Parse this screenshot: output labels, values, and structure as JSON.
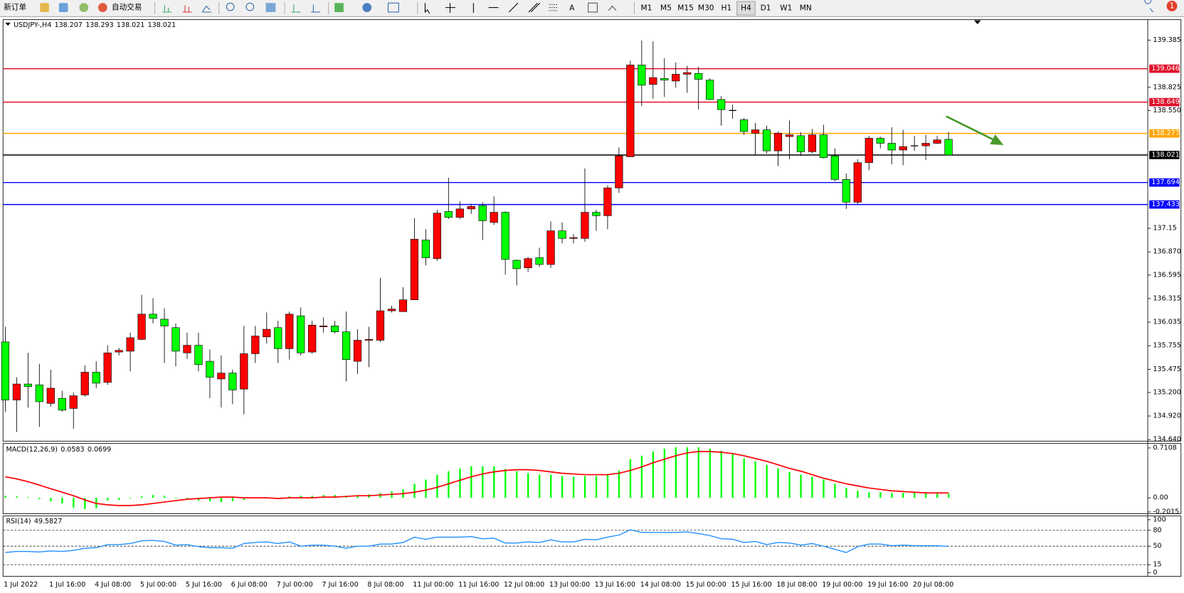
{
  "toolbar": {
    "new_order": "新订单",
    "auto_trading": "自动交易",
    "timeframes": [
      "M1",
      "M5",
      "M15",
      "M30",
      "H1",
      "H4",
      "D1",
      "W1",
      "MN"
    ],
    "notifications": 1
  },
  "chart_data": [
    {
      "type": "candlestick",
      "title": "USDJPY-,H4",
      "categories": [
        "1 Jul 2022",
        null,
        null,
        null,
        "1 Jul 16:00",
        null,
        null,
        null,
        "4 Jul 08:00",
        null,
        null,
        null,
        "5 Jul 00:00",
        null,
        null,
        null,
        "5 Jul 16:00",
        null,
        null,
        null,
        "6 Jul 08:00",
        null,
        null,
        null,
        "7 Jul 00:00",
        null,
        null,
        null,
        "7 Jul 16:00",
        null,
        null,
        null,
        "8 Jul 08:00",
        null,
        null,
        null,
        "11 Jul 00:00",
        null,
        null,
        null,
        "11 Jul 16:00",
        null,
        null,
        null,
        "12 Jul 08:00",
        null,
        null,
        null,
        "13 Jul 00:00",
        null,
        null,
        null,
        "13 Jul 16:00",
        null,
        null,
        null,
        "14 Jul 08:00",
        null,
        null,
        null,
        "15 Jul 00:00",
        null,
        null,
        null,
        "15 Jul 16:00",
        null,
        null,
        null,
        "18 Jul 08:00",
        null,
        null,
        null,
        "19 Jul 00:00",
        null,
        null,
        null,
        "19 Jul 16:00",
        null,
        null,
        null,
        "20 Jul 08:00",
        null,
        null,
        null
      ],
      "open": [
        135.8,
        135.11,
        135.3,
        135.29,
        135.07,
        135.13,
        135.01,
        135.17,
        135.44,
        135.32,
        135.68,
        135.69,
        135.83,
        136.13,
        136.07,
        135.97,
        135.67,
        135.76,
        135.57,
        135.36,
        135.43,
        135.24,
        135.66,
        135.86,
        135.97,
        135.72,
        136.11,
        135.68,
        135.98,
        135.99,
        135.92,
        135.57,
        135.82,
        135.82,
        136.17,
        136.16,
        136.3,
        137.01,
        136.79,
        137.35,
        137.28,
        137.38,
        137.42,
        137.22,
        137.34,
        136.77,
        136.68,
        136.8,
        136.72,
        137.12,
        137.03,
        137.03,
        137.34,
        137.3,
        137.63,
        138.0,
        139.09,
        138.86,
        138.93,
        138.9,
        138.98,
        138.99,
        138.91,
        138.68,
        138.55,
        138.44,
        138.28,
        138.32,
        138.07,
        138.24,
        138.25,
        138.06,
        138.26,
        138.01,
        137.73,
        137.46,
        137.93,
        138.22,
        138.16,
        138.08,
        138.13,
        138.13,
        138.16,
        138.207
      ],
      "high": [
        135.98,
        135.38,
        135.67,
        135.54,
        135.47,
        135.22,
        135.2,
        135.52,
        135.57,
        135.76,
        135.73,
        135.91,
        136.36,
        136.32,
        136.2,
        136.02,
        135.91,
        135.91,
        135.71,
        135.64,
        135.47,
        135.99,
        135.99,
        136.15,
        136.05,
        136.16,
        136.21,
        136.05,
        136.09,
        136.05,
        136.16,
        135.95,
        135.98,
        136.56,
        136.23,
        136.45,
        137.27,
        137.14,
        137.37,
        137.75,
        137.47,
        137.44,
        137.46,
        137.53,
        137.35,
        136.78,
        136.81,
        136.92,
        137.23,
        137.22,
        137.08,
        137.86,
        137.37,
        137.66,
        138.11,
        139.14,
        139.38,
        139.37,
        139.17,
        139.12,
        139.08,
        139.07,
        138.93,
        138.72,
        138.62,
        138.46,
        138.4,
        138.37,
        138.3,
        138.43,
        138.29,
        138.33,
        138.38,
        138.1,
        137.8,
        137.97,
        138.25,
        138.24,
        138.35,
        138.32,
        138.25,
        138.26,
        138.25,
        138.293
      ],
      "low": [
        134.97,
        134.73,
        135.02,
        134.79,
        135.03,
        134.97,
        134.77,
        135.15,
        135.25,
        135.29,
        135.64,
        135.45,
        135.82,
        136.02,
        135.55,
        135.51,
        135.6,
        135.45,
        135.13,
        135.02,
        135.06,
        134.94,
        135.55,
        135.78,
        135.55,
        135.59,
        135.64,
        135.66,
        135.91,
        135.9,
        135.33,
        135.42,
        135.5,
        135.8,
        136.15,
        136.16,
        136.3,
        136.71,
        136.76,
        137.26,
        137.26,
        137.32,
        137.01,
        137.19,
        136.6,
        136.47,
        136.63,
        136.69,
        136.68,
        136.97,
        136.97,
        136.99,
        137.12,
        137.14,
        137.57,
        138.0,
        138.6,
        138.69,
        138.71,
        138.82,
        138.76,
        138.56,
        138.67,
        138.37,
        138.45,
        138.26,
        138.02,
        138.04,
        137.89,
        137.97,
        138.01,
        138.04,
        137.98,
        137.71,
        137.38,
        137.44,
        137.84,
        138.1,
        137.91,
        137.9,
        138.07,
        137.96,
        138.15,
        138.021
      ],
      "close": [
        135.11,
        135.3,
        135.27,
        135.09,
        135.25,
        134.99,
        135.16,
        135.44,
        135.31,
        135.67,
        135.7,
        135.85,
        136.13,
        136.08,
        135.99,
        135.69,
        135.76,
        135.53,
        135.38,
        135.43,
        135.23,
        135.66,
        135.87,
        135.95,
        135.72,
        136.13,
        135.67,
        136.0,
        135.99,
        135.92,
        135.59,
        135.82,
        135.83,
        136.17,
        136.19,
        136.3,
        137.02,
        136.8,
        137.33,
        137.28,
        137.38,
        137.41,
        137.24,
        137.34,
        136.78,
        136.67,
        136.79,
        136.72,
        137.12,
        137.03,
        137.04,
        137.34,
        137.3,
        137.63,
        138.01,
        139.09,
        138.85,
        138.94,
        138.91,
        138.98,
        139.0,
        138.92,
        138.68,
        138.56,
        138.55,
        138.3,
        138.32,
        138.07,
        138.28,
        138.26,
        138.06,
        138.26,
        137.99,
        137.73,
        137.46,
        137.93,
        138.22,
        138.16,
        138.08,
        138.12,
        138.13,
        138.16,
        138.2,
        138.021
      ],
      "up_color": "#ff0000",
      "down_color": "#00ff00",
      "ylim": [
        134.63,
        139.62
      ],
      "yticks": [
        139.385,
        {
          "value": 138.825,
          "label": "138.825"
        },
        {
          "value": 138.55,
          "label": "138.550"
        },
        137.15,
        {
          "value": 136.87,
          "label": "136.870"
        },
        136.595,
        136.315,
        136.035,
        135.755,
        135.475,
        {
          "value": 135.2,
          "label": "135.200"
        },
        {
          "value": 134.92,
          "label": "134.920"
        },
        {
          "value": 134.64,
          "label": "134.640"
        }
      ],
      "yticks_fix": null,
      "levels": [
        {
          "value": 139.046,
          "color": "#e0102a"
        },
        {
          "value": 138.649,
          "color": "#e0102a"
        },
        {
          "value": 138.277,
          "color": "#ffa500"
        },
        {
          "value": 138.021,
          "color": "#000000"
        },
        {
          "value": 137.694,
          "color": "#0000ff"
        },
        {
          "value": 137.433,
          "color": "#0000ff"
        }
      ]
    },
    {
      "type": "macd",
      "title": "MACD(12,26,9)",
      "series": [
        {
          "color": "#00ff00",
          "values": [
            0.03,
            0.02,
            0.01,
            -0.02,
            -0.05,
            -0.08,
            -0.14,
            -0.16,
            -0.15,
            -0.04,
            -0.03,
            -0.01,
            0.02,
            0.04,
            0.03,
            -0.01,
            -0.03,
            -0.04,
            -0.05,
            -0.06,
            -0.05,
            -0.03,
            0.0,
            0.01,
            0.0,
            0.02,
            0.03,
            0.03,
            0.04,
            0.04,
            0.03,
            0.04,
            0.05,
            0.07,
            0.09,
            0.12,
            0.2,
            0.26,
            0.33,
            0.38,
            0.42,
            0.45,
            0.45,
            0.45,
            0.41,
            0.38,
            0.35,
            0.33,
            0.33,
            0.31,
            0.3,
            0.31,
            0.31,
            0.34,
            0.39,
            0.55,
            0.6,
            0.66,
            0.7,
            0.72,
            0.72,
            0.72,
            0.7,
            0.67,
            0.62,
            0.56,
            0.52,
            0.47,
            0.42,
            0.37,
            0.33,
            0.3,
            0.26,
            0.2,
            0.14,
            0.1,
            0.08,
            0.08,
            0.07,
            0.07,
            0.07,
            0.06,
            0.06,
            0.0583
          ]
        },
        {
          "color": "#ff0000",
          "values": [
            0.3,
            0.27,
            0.23,
            0.18,
            0.13,
            0.08,
            0.03,
            -0.03,
            -0.08,
            -0.1,
            -0.11,
            -0.11,
            -0.1,
            -0.08,
            -0.06,
            -0.04,
            -0.02,
            -0.01,
            0.0,
            0.01,
            0.01,
            0.0,
            0.0,
            0.0,
            -0.01,
            0.0,
            0.0,
            0.0,
            0.01,
            0.01,
            0.02,
            0.03,
            0.03,
            0.04,
            0.05,
            0.06,
            0.08,
            0.11,
            0.15,
            0.2,
            0.25,
            0.3,
            0.34,
            0.37,
            0.39,
            0.4,
            0.4,
            0.39,
            0.37,
            0.35,
            0.34,
            0.33,
            0.33,
            0.33,
            0.35,
            0.39,
            0.44,
            0.5,
            0.55,
            0.6,
            0.64,
            0.66,
            0.66,
            0.65,
            0.63,
            0.6,
            0.56,
            0.52,
            0.47,
            0.42,
            0.38,
            0.33,
            0.28,
            0.24,
            0.2,
            0.17,
            0.14,
            0.12,
            0.1,
            0.09,
            0.08,
            0.07,
            0.07,
            0.0699
          ]
        }
      ],
      "ylim": [
        -0.226,
        0.775
      ],
      "yticks": [
        0.7108,
        {
          "value": 0,
          "label": "0.00"
        },
        -0.2015
      ]
    },
    {
      "type": "rsi",
      "title": "RSI(14)",
      "color": "#1e90ff",
      "values": [
        38,
        40,
        40,
        39,
        41,
        40,
        42,
        46,
        47,
        53,
        53,
        55,
        60,
        61,
        59,
        52,
        53,
        49,
        47,
        47,
        46,
        55,
        57,
        58,
        55,
        58,
        50,
        52,
        52,
        50,
        46,
        50,
        50,
        54,
        54,
        57,
        67,
        63,
        67,
        67,
        67,
        68,
        64,
        65,
        56,
        56,
        58,
        57,
        62,
        58,
        58,
        63,
        62,
        67,
        71,
        81,
        76,
        76,
        76,
        76,
        77,
        74,
        70,
        64,
        63,
        57,
        59,
        53,
        57,
        56,
        52,
        55,
        50,
        44,
        38,
        49,
        54,
        54,
        51,
        52,
        51,
        51,
        51,
        49.5827
      ],
      "ylim": [
        -5.7,
        105.7
      ],
      "yticks": [
        100,
        80,
        50,
        15,
        0
      ]
    }
  ]
}
